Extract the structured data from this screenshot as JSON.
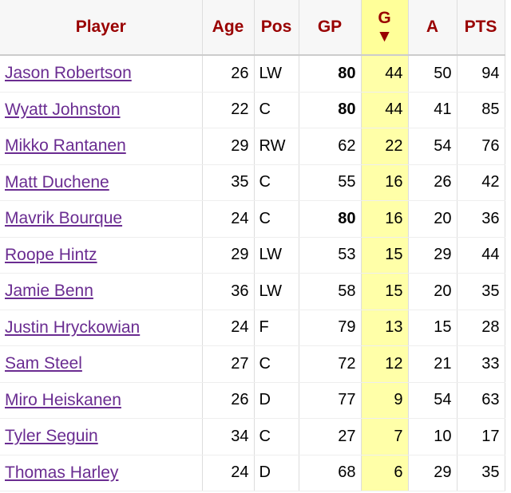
{
  "table": {
    "header": {
      "player": "Player",
      "age": "Age",
      "pos": "Pos",
      "gp": "GP",
      "g": "G",
      "a": "A",
      "pts": "PTS"
    },
    "sort_indicator": "▼",
    "sorted_column": "g",
    "rows": [
      {
        "player": "Jason Robertson",
        "age": 26,
        "pos": "LW",
        "gp": 80,
        "gp_bold": true,
        "g": 44,
        "a": 50,
        "pts": 94
      },
      {
        "player": "Wyatt Johnston",
        "age": 22,
        "pos": "C",
        "gp": 80,
        "gp_bold": true,
        "g": 44,
        "a": 41,
        "pts": 85
      },
      {
        "player": "Mikko Rantanen",
        "age": 29,
        "pos": "RW",
        "gp": 62,
        "gp_bold": false,
        "g": 22,
        "a": 54,
        "pts": 76
      },
      {
        "player": "Matt Duchene",
        "age": 35,
        "pos": "C",
        "gp": 55,
        "gp_bold": false,
        "g": 16,
        "a": 26,
        "pts": 42
      },
      {
        "player": "Mavrik Bourque",
        "age": 24,
        "pos": "C",
        "gp": 80,
        "gp_bold": true,
        "g": 16,
        "a": 20,
        "pts": 36
      },
      {
        "player": "Roope Hintz",
        "age": 29,
        "pos": "LW",
        "gp": 53,
        "gp_bold": false,
        "g": 15,
        "a": 29,
        "pts": 44
      },
      {
        "player": "Jamie Benn",
        "age": 36,
        "pos": "LW",
        "gp": 58,
        "gp_bold": false,
        "g": 15,
        "a": 20,
        "pts": 35
      },
      {
        "player": "Justin Hryckowian",
        "age": 24,
        "pos": "F",
        "gp": 79,
        "gp_bold": false,
        "g": 13,
        "a": 15,
        "pts": 28
      },
      {
        "player": "Sam Steel",
        "age": 27,
        "pos": "C",
        "gp": 72,
        "gp_bold": false,
        "g": 12,
        "a": 21,
        "pts": 33
      },
      {
        "player": "Miro Heiskanen",
        "age": 26,
        "pos": "D",
        "gp": 77,
        "gp_bold": false,
        "g": 9,
        "a": 54,
        "pts": 63
      },
      {
        "player": "Tyler Seguin",
        "age": 34,
        "pos": "C",
        "gp": 27,
        "gp_bold": false,
        "g": 7,
        "a": 10,
        "pts": 17
      },
      {
        "player": "Thomas Harley",
        "age": 24,
        "pos": "D",
        "gp": 68,
        "gp_bold": false,
        "g": 6,
        "a": 29,
        "pts": 35
      }
    ]
  }
}
